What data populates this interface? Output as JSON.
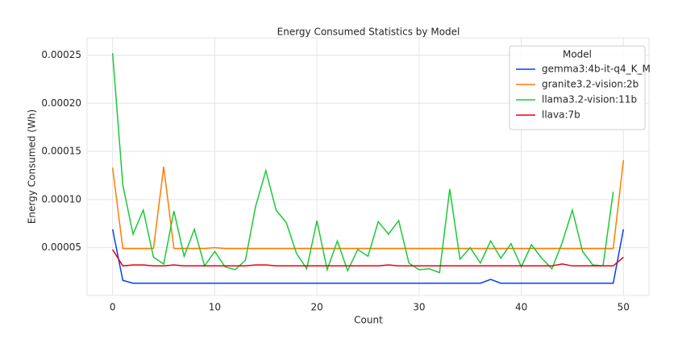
{
  "chart_data": {
    "type": "line",
    "title": "Energy Consumed Statistics by Model",
    "x_label": "Count",
    "y_label": "Energy Consumed (Wh)",
    "x": [
      0,
      1,
      2,
      3,
      4,
      5,
      6,
      7,
      8,
      9,
      10,
      11,
      12,
      13,
      14,
      15,
      16,
      17,
      18,
      19,
      20,
      21,
      22,
      23,
      24,
      25,
      26,
      27,
      28,
      29,
      30,
      31,
      32,
      33,
      34,
      35,
      36,
      37,
      38,
      39,
      40,
      41,
      42,
      43,
      44,
      45,
      46,
      47,
      48,
      49,
      50
    ],
    "xlim": [
      -2.5,
      52.5
    ],
    "xticks": [
      0,
      10,
      20,
      30,
      40,
      50
    ],
    "ylim": [
      3e-07,
      0.000268
    ],
    "yticks": [
      5e-05,
      {
        "value": 0.0001,
        "label": "0.00010"
      },
      0.00015,
      {
        "value": 0.0002,
        "label": "0.00020"
      },
      0.00025
    ],
    "grid": true,
    "legend_title": "Model",
    "legend_position": "upper right",
    "series": [
      {
        "name": "gemma3:4b-it-q4_K_M",
        "color": "#023eff",
        "values": [
          6.9e-05,
          1.6e-05,
          1.3e-05,
          1.3e-05,
          1.3e-05,
          1.3e-05,
          1.3e-05,
          1.3e-05,
          1.3e-05,
          1.3e-05,
          1.3e-05,
          1.3e-05,
          1.3e-05,
          1.3e-05,
          1.3e-05,
          1.3e-05,
          1.3e-05,
          1.3e-05,
          1.3e-05,
          1.3e-05,
          1.3e-05,
          1.3e-05,
          1.3e-05,
          1.3e-05,
          1.3e-05,
          1.3e-05,
          1.3e-05,
          1.3e-05,
          1.3e-05,
          1.3e-05,
          1.3e-05,
          1.3e-05,
          1.3e-05,
          1.3e-05,
          1.3e-05,
          1.3e-05,
          1.3e-05,
          1.7e-05,
          1.3e-05,
          1.3e-05,
          1.3e-05,
          1.3e-05,
          1.3e-05,
          1.3e-05,
          1.3e-05,
          1.3e-05,
          1.3e-05,
          1.3e-05,
          1.3e-05,
          1.3e-05,
          6.9e-05
        ]
      },
      {
        "name": "granite3.2-vision:2b",
        "color": "#ff7c00",
        "values": [
          0.000133,
          4.9e-05,
          4.9e-05,
          4.9e-05,
          4.9e-05,
          0.000134,
          4.9e-05,
          4.9e-05,
          4.9e-05,
          4.9e-05,
          5e-05,
          4.9e-05,
          4.9e-05,
          4.9e-05,
          4.9e-05,
          4.9e-05,
          4.9e-05,
          4.9e-05,
          4.9e-05,
          4.9e-05,
          4.9e-05,
          4.9e-05,
          4.9e-05,
          4.9e-05,
          4.9e-05,
          4.9e-05,
          4.9e-05,
          4.9e-05,
          4.9e-05,
          4.9e-05,
          4.9e-05,
          4.9e-05,
          4.9e-05,
          4.9e-05,
          4.9e-05,
          4.9e-05,
          4.9e-05,
          4.9e-05,
          4.9e-05,
          4.9e-05,
          4.9e-05,
          4.9e-05,
          4.9e-05,
          4.9e-05,
          4.9e-05,
          4.9e-05,
          4.9e-05,
          4.9e-05,
          4.9e-05,
          4.9e-05,
          0.000141
        ]
      },
      {
        "name": "llama3.2-vision:11b",
        "color": "#1ac938",
        "values": [
          0.000252,
          0.000115,
          6.4e-05,
          8.9e-05,
          4e-05,
          3.3e-05,
          8.8e-05,
          4.1e-05,
          6.9e-05,
          3.1e-05,
          4.6e-05,
          3e-05,
          2.7e-05,
          3.7e-05,
          9.3e-05,
          0.00013,
          8.9e-05,
          7.6e-05,
          4.4e-05,
          2.8e-05,
          7.8e-05,
          2.7e-05,
          5.7e-05,
          2.6e-05,
          4.8e-05,
          4.1e-05,
          7.7e-05,
          6.4e-05,
          7.8e-05,
          3.4e-05,
          2.7e-05,
          2.8e-05,
          2.4e-05,
          0.000111,
          3.8e-05,
          5e-05,
          3.4e-05,
          5.7e-05,
          3.9e-05,
          5.4e-05,
          3e-05,
          5.3e-05,
          3.9e-05,
          2.8e-05,
          5.5e-05,
          8.9e-05,
          4.6e-05,
          3.2e-05,
          3.1e-05,
          0.000108,
          null
        ]
      },
      {
        "name": "llava:7b",
        "color": "#e8000b",
        "values": [
          4.8e-05,
          3.1e-05,
          3.2e-05,
          3.2e-05,
          3.1e-05,
          3.1e-05,
          3.2e-05,
          3.1e-05,
          3.1e-05,
          3.1e-05,
          3.1e-05,
          3.1e-05,
          3.1e-05,
          3.1e-05,
          3.2e-05,
          3.2e-05,
          3.1e-05,
          3.1e-05,
          3.1e-05,
          3.1e-05,
          3.1e-05,
          3.1e-05,
          3.1e-05,
          3.1e-05,
          3.1e-05,
          3.1e-05,
          3.1e-05,
          3.2e-05,
          3.1e-05,
          3.1e-05,
          3.1e-05,
          3.1e-05,
          3.1e-05,
          3.1e-05,
          3.1e-05,
          3.1e-05,
          3.1e-05,
          3.1e-05,
          3.1e-05,
          3.1e-05,
          3.1e-05,
          3.1e-05,
          3.1e-05,
          3.1e-05,
          3.3e-05,
          3.1e-05,
          3.1e-05,
          3.1e-05,
          3.1e-05,
          3.1e-05,
          4e-05
        ]
      }
    ]
  }
}
